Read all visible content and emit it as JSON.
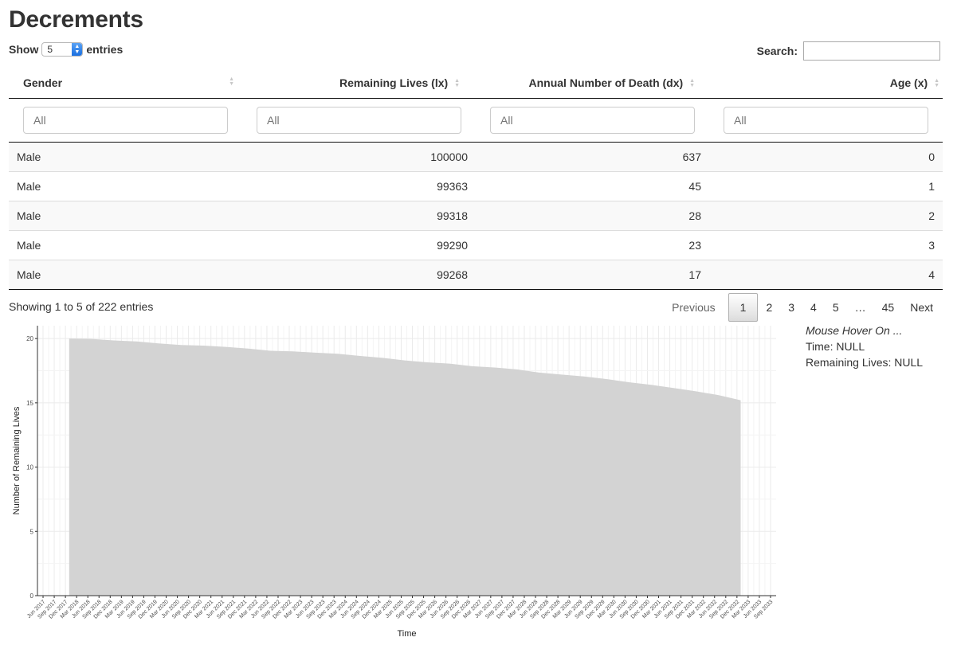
{
  "page": {
    "title": "Decrements"
  },
  "length_control": {
    "show_label": "Show",
    "value": "5",
    "entries_label": "entries"
  },
  "search": {
    "label": "Search:",
    "value": ""
  },
  "table": {
    "columns": [
      {
        "label": "Gender",
        "filter_placeholder": "All"
      },
      {
        "label": "Remaining Lives (lx)",
        "filter_placeholder": "All"
      },
      {
        "label": "Annual Number of Death (dx)",
        "filter_placeholder": "All"
      },
      {
        "label": "Age (x)",
        "filter_placeholder": "All"
      }
    ],
    "rows": [
      [
        "Male",
        "100000",
        "637",
        "0"
      ],
      [
        "Male",
        "99363",
        "45",
        "1"
      ],
      [
        "Male",
        "99318",
        "28",
        "2"
      ],
      [
        "Male",
        "99290",
        "23",
        "3"
      ],
      [
        "Male",
        "99268",
        "17",
        "4"
      ]
    ]
  },
  "info": "Showing 1 to 5 of 222 entries",
  "pagination": {
    "previous": "Previous",
    "pages": [
      "1",
      "2",
      "3",
      "4",
      "5",
      "…",
      "45"
    ],
    "current": "1",
    "next": "Next"
  },
  "hover_panel": {
    "title": "Mouse Hover On ...",
    "time": "Time: NULL",
    "remaining": "Remaining Lives: NULL"
  },
  "chart_data": {
    "type": "area",
    "xlabel": "Time",
    "ylabel": "Number of Remaining Lives",
    "ylim": [
      0,
      21
    ],
    "yticks": [
      0,
      5,
      10,
      15,
      20
    ],
    "grid": true,
    "fill_color": "#d3d3d3",
    "x_ticks": [
      "Jun 2017",
      "Sep 2017",
      "Dec 2017",
      "Mar 2018",
      "Jun 2018",
      "Sep 2018",
      "Dec 2018",
      "Mar 2019",
      "Jun 2019",
      "Sep 2019",
      "Dec 2019",
      "Mar 2020",
      "Jun 2020",
      "Sep 2020",
      "Dec 2020",
      "Mar 2021",
      "Jun 2021",
      "Sep 2021",
      "Dec 2021",
      "Mar 2022",
      "Jun 2022",
      "Sep 2022",
      "Dec 2022",
      "Mar 2023",
      "Jun 2023",
      "Sep 2023",
      "Dec 2023",
      "Mar 2024",
      "Jun 2024",
      "Sep 2024",
      "Dec 2024",
      "Mar 2025",
      "Jun 2025",
      "Sep 2025",
      "Dec 2025",
      "Mar 2026",
      "Jun 2026",
      "Sep 2026",
      "Dec 2026",
      "Mar 2027",
      "Jun 2027",
      "Sep 2027",
      "Dec 2027",
      "Mar 2028",
      "Jun 2028",
      "Sep 2028",
      "Dec 2028",
      "Mar 2029",
      "Jun 2029",
      "Sep 2029",
      "Dec 2029",
      "Mar 2030",
      "Jun 2030",
      "Sep 2030",
      "Dec 2030",
      "Mar 2031",
      "Jun 2031",
      "Sep 2031",
      "Dec 2031",
      "Mar 2032",
      "Jun 2032",
      "Sep 2032",
      "Dec 2032",
      "Mar 2033",
      "Jun 2033",
      "Sep 2033"
    ],
    "series": [
      {
        "x": [
          "Jan 2018",
          "Jul 2018",
          "Jan 2019",
          "Jul 2019",
          "Jan 2020",
          "Jul 2020",
          "Jan 2021",
          "Jul 2021",
          "Jan 2022",
          "Jul 2022",
          "Jan 2023",
          "Jul 2023",
          "Jan 2024",
          "Jul 2024",
          "Jan 2025",
          "Jul 2025",
          "Jan 2026",
          "Jul 2026",
          "Jan 2027",
          "Jul 2027",
          "Jan 2028",
          "Jul 2028",
          "Jan 2029",
          "Jul 2029",
          "Jan 2030",
          "Jul 2030",
          "Jan 2031",
          "Jul 2031",
          "Jan 2032",
          "Jul 2032",
          "Jan 2033"
        ],
        "values": [
          20.0,
          19.97,
          19.85,
          19.78,
          19.62,
          19.5,
          19.45,
          19.35,
          19.22,
          19.05,
          19.0,
          18.9,
          18.82,
          18.65,
          18.5,
          18.3,
          18.15,
          18.05,
          17.85,
          17.75,
          17.6,
          17.35,
          17.2,
          17.05,
          16.85,
          16.6,
          16.4,
          16.15,
          15.9,
          15.6,
          15.2
        ]
      }
    ]
  }
}
